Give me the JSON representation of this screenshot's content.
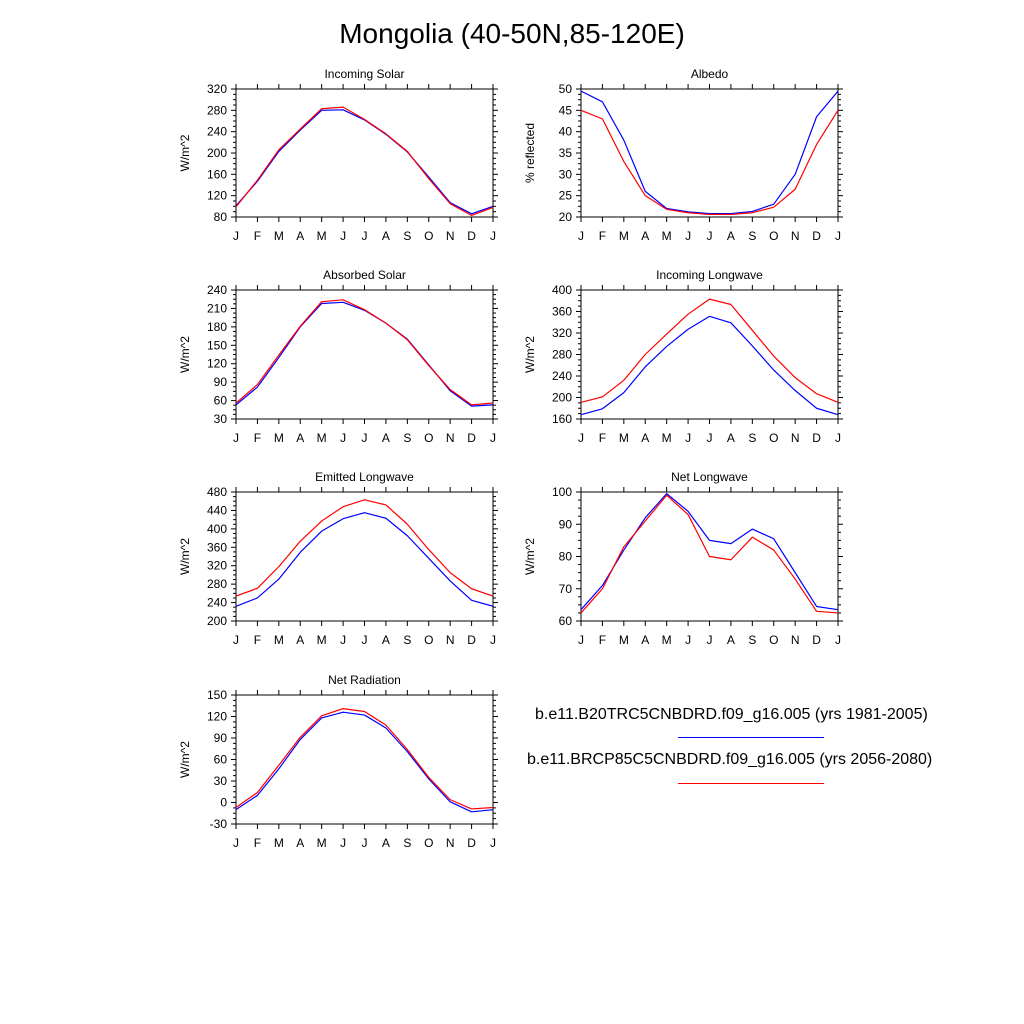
{
  "title": "Mongolia (40-50N,85-120E)",
  "legend": [
    {
      "label": "b.e11.B20TRC5CNBDRD.f09_g16.005 (yrs 1981-2005)",
      "color": "#0000ff"
    },
    {
      "label": "b.e11.BRCP85C5CNBDRD.f09_g16.005 (yrs 2056-2080)",
      "color": "#ff0000"
    }
  ],
  "chart_data": [
    {
      "type": "line",
      "title": "Incoming Solar",
      "ylabel": "W/m^2",
      "categories": [
        "J",
        "F",
        "M",
        "A",
        "M",
        "J",
        "J",
        "A",
        "S",
        "O",
        "N",
        "D",
        "J"
      ],
      "ylim": [
        80,
        320
      ],
      "yticks": [
        80,
        120,
        160,
        200,
        240,
        280,
        320
      ],
      "series": [
        {
          "color": "#0000ff",
          "values": [
            101,
            147,
            203,
            243,
            280,
            281,
            262,
            235,
            202,
            155,
            107,
            86,
            100
          ]
        },
        {
          "color": "#ff0000",
          "values": [
            99,
            149,
            206,
            245,
            283,
            286,
            263,
            236,
            203,
            152,
            105,
            83,
            98
          ]
        }
      ]
    },
    {
      "type": "line",
      "title": "Albedo",
      "ylabel": "% reflected",
      "categories": [
        "J",
        "F",
        "M",
        "A",
        "M",
        "J",
        "J",
        "A",
        "S",
        "O",
        "N",
        "D",
        "J"
      ],
      "ylim": [
        20,
        50
      ],
      "yticks": [
        20,
        25,
        30,
        35,
        40,
        45,
        50
      ],
      "series": [
        {
          "color": "#0000ff",
          "values": [
            49.5,
            47,
            38,
            26,
            22,
            21.2,
            20.8,
            20.8,
            21.3,
            23,
            30,
            43.5,
            49.5
          ]
        },
        {
          "color": "#ff0000",
          "values": [
            45,
            43,
            33,
            25,
            21.8,
            21,
            20.6,
            20.6,
            21,
            22.3,
            26.5,
            37,
            45
          ]
        }
      ]
    },
    {
      "type": "line",
      "title": "Absorbed Solar",
      "ylabel": "W/m^2",
      "categories": [
        "J",
        "F",
        "M",
        "A",
        "M",
        "J",
        "J",
        "A",
        "S",
        "O",
        "N",
        "D",
        "J"
      ],
      "ylim": [
        30,
        240
      ],
      "yticks": [
        30,
        60,
        90,
        120,
        150,
        180,
        210,
        240
      ],
      "series": [
        {
          "color": "#0000ff",
          "values": [
            53,
            82,
            130,
            180,
            218,
            220,
            207,
            186,
            160,
            118,
            76,
            51,
            53
          ]
        },
        {
          "color": "#ff0000",
          "values": [
            56,
            86,
            134,
            181,
            221,
            224,
            208,
            186,
            159,
            117,
            78,
            53,
            56
          ]
        }
      ]
    },
    {
      "type": "line",
      "title": "Incoming Longwave",
      "ylabel": "W/m^2",
      "categories": [
        "J",
        "F",
        "M",
        "A",
        "M",
        "J",
        "J",
        "A",
        "S",
        "O",
        "N",
        "D",
        "J"
      ],
      "ylim": [
        160,
        400
      ],
      "yticks": [
        160,
        200,
        240,
        280,
        320,
        360,
        400
      ],
      "series": [
        {
          "color": "#0000ff",
          "values": [
            168,
            179,
            209,
            257,
            295,
            327,
            351,
            339,
            296,
            251,
            213,
            180,
            168
          ]
        },
        {
          "color": "#ff0000",
          "values": [
            191,
            201,
            232,
            280,
            318,
            355,
            383,
            373,
            325,
            277,
            237,
            207,
            191
          ]
        }
      ]
    },
    {
      "type": "line",
      "title": "Emitted Longwave",
      "ylabel": "W/m^2",
      "categories": [
        "J",
        "F",
        "M",
        "A",
        "M",
        "J",
        "J",
        "A",
        "S",
        "O",
        "N",
        "D",
        "J"
      ],
      "ylim": [
        200,
        480
      ],
      "yticks": [
        200,
        240,
        280,
        320,
        360,
        400,
        440,
        480
      ],
      "series": [
        {
          "color": "#0000ff",
          "values": [
            232,
            250,
            291,
            349,
            395,
            422,
            435,
            423,
            385,
            336,
            287,
            245,
            232
          ]
        },
        {
          "color": "#ff0000",
          "values": [
            254,
            271,
            318,
            373,
            417,
            448,
            463,
            452,
            410,
            355,
            305,
            270,
            254
          ]
        }
      ]
    },
    {
      "type": "line",
      "title": "Net Longwave",
      "ylabel": "W/m^2",
      "categories": [
        "J",
        "F",
        "M",
        "A",
        "M",
        "J",
        "J",
        "A",
        "S",
        "O",
        "N",
        "D",
        "J"
      ],
      "ylim": [
        60,
        100
      ],
      "yticks": [
        60,
        70,
        80,
        90,
        100
      ],
      "series": [
        {
          "color": "#0000ff",
          "values": [
            63.5,
            71,
            82,
            92,
            99.5,
            94,
            85,
            84,
            88.5,
            85.5,
            75,
            64.5,
            63.5
          ]
        },
        {
          "color": "#ff0000",
          "values": [
            62.5,
            70,
            83,
            91,
            99,
            93,
            80,
            79,
            86,
            82,
            73,
            63,
            62.5
          ]
        }
      ]
    },
    {
      "type": "line",
      "title": "Net Radiation",
      "ylabel": "W/m^2",
      "categories": [
        "J",
        "F",
        "M",
        "A",
        "M",
        "J",
        "J",
        "A",
        "S",
        "O",
        "N",
        "D",
        "J"
      ],
      "ylim": [
        -30,
        150
      ],
      "yticks": [
        -30,
        0,
        30,
        60,
        90,
        120,
        150
      ],
      "series": [
        {
          "color": "#0000ff",
          "values": [
            -10,
            10,
            47,
            88,
            118,
            126,
            122,
            104,
            71,
            33,
            1,
            -13,
            -10
          ]
        },
        {
          "color": "#ff0000",
          "values": [
            -7,
            14,
            52,
            91,
            121,
            131,
            127,
            108,
            74,
            35,
            4,
            -9,
            -7
          ]
        }
      ]
    }
  ]
}
